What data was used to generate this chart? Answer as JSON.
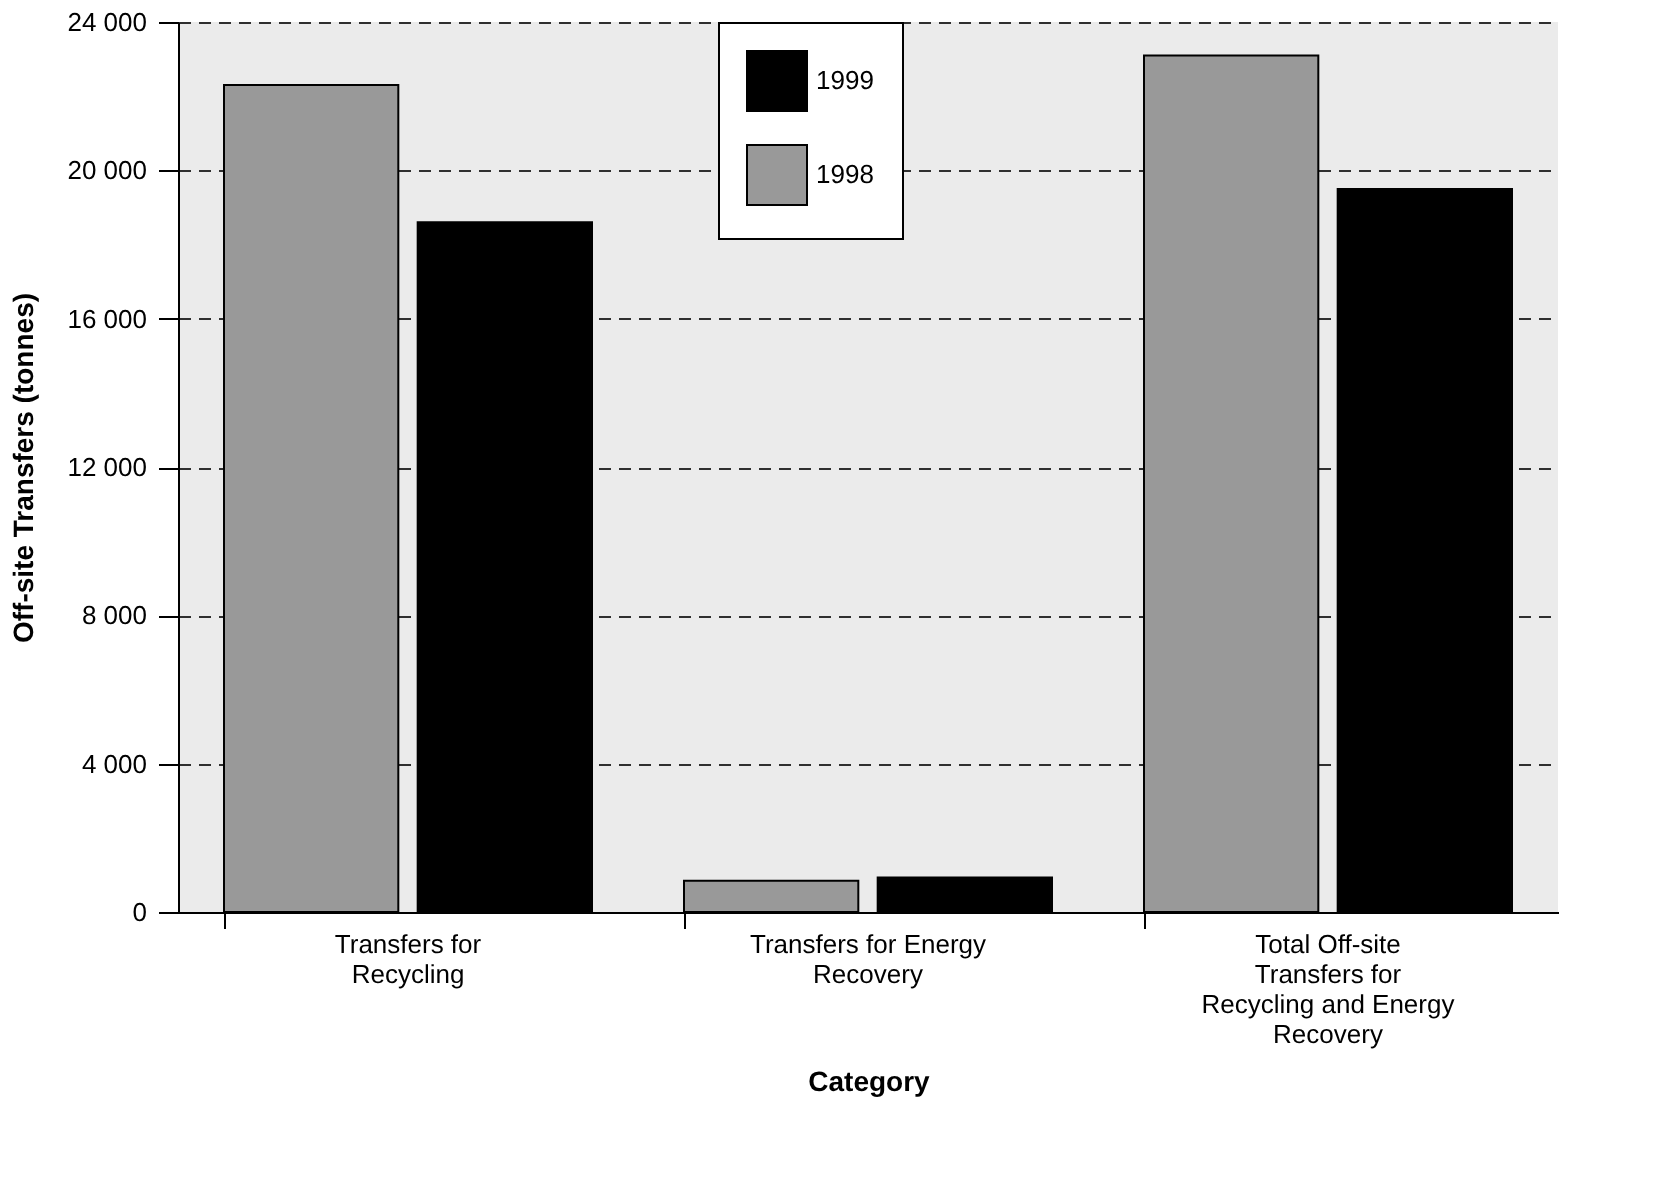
{
  "chart_data": {
    "type": "bar",
    "xlabel": "Category",
    "ylabel": "Off-site Transfers (tonnes)",
    "categories": [
      "Transfers for Recycling",
      "Transfers for Energy Recovery",
      "Total Off-site Transfers for Recycling and Energy Recovery"
    ],
    "series": [
      {
        "name": "1998",
        "color": "#999999",
        "values": [
          22300,
          840,
          23100
        ]
      },
      {
        "name": "1999",
        "color": "#000000",
        "values": [
          18600,
          930,
          19500
        ]
      }
    ],
    "ylim": [
      0,
      24000
    ],
    "yticks": [
      {
        "value": 0,
        "label": "0"
      },
      {
        "value": 4000,
        "label": "4 000"
      },
      {
        "value": 8000,
        "label": "8 000"
      },
      {
        "value": 12000,
        "label": "12 000"
      },
      {
        "value": 16000,
        "label": "16 000"
      },
      {
        "value": 20000,
        "label": "20 000"
      },
      {
        "value": 24000,
        "label": "24 000"
      }
    ],
    "grid": "y",
    "legend": "top"
  }
}
